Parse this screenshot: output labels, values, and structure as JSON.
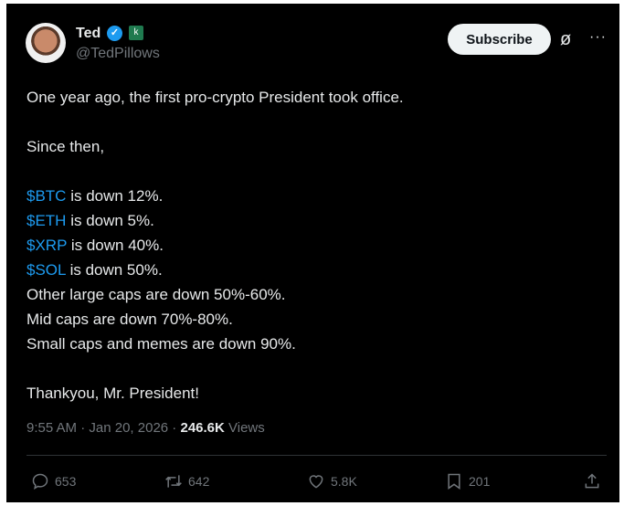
{
  "author": {
    "name": "Ted",
    "handle": "@TedPillows",
    "verified": true,
    "affiliate_badge": "k"
  },
  "header": {
    "subscribe_label": "Subscribe",
    "grok_icon": "grok-icon",
    "more_icon": "more-icon"
  },
  "body": {
    "line1": "One year ago, the first pro-crypto President took office.",
    "line2": "Since then,",
    "coins": [
      {
        "tag": "$BTC",
        "text": " is down 12%."
      },
      {
        "tag": "$ETH",
        "text": " is down 5%."
      },
      {
        "tag": "$XRP",
        "text": " is down 40%."
      },
      {
        "tag": "$SOL",
        "text": " is down 50%."
      }
    ],
    "line3": "Other large caps are down 50%-60%.",
    "line4": "Mid caps are down 70%-80%.",
    "line5": "Small caps and memes are down 90%.",
    "line6": "Thankyou, Mr. President!"
  },
  "meta": {
    "time": "9:55 AM",
    "sep1": " · ",
    "date": "Jan 20, 2026",
    "sep2": " · ",
    "views_count": "246.6K",
    "views_label": " Views"
  },
  "actions": {
    "replies": "653",
    "reposts": "642",
    "likes": "5.8K",
    "bookmarks": "201"
  },
  "colors": {
    "background": "#000000",
    "link": "#1d9bf0",
    "muted": "#71767b",
    "text": "#e7e9ea"
  }
}
